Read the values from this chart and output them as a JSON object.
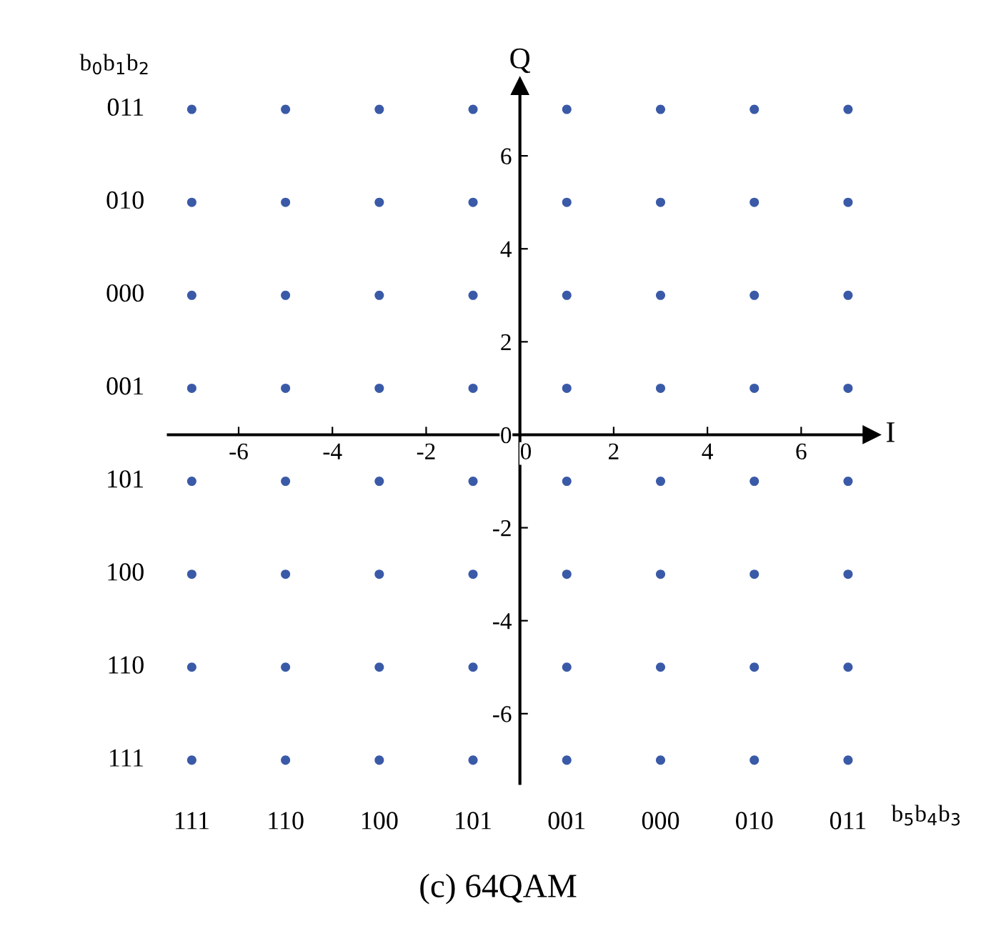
{
  "chart_data": {
    "type": "scatter",
    "title": "(c) 64QAM",
    "xlabel": "I",
    "ylabel": "Q",
    "xlim": [
      -7.5,
      7.5
    ],
    "ylim": [
      -7.5,
      7.5
    ],
    "xticks": [
      -6,
      -4,
      -2,
      0,
      2,
      4,
      6
    ],
    "yticks": [
      -6,
      -4,
      -2,
      0,
      2,
      4,
      6
    ],
    "annotations": [
      "b$_{0}$b$_{1}$b$_{2}$",
      "b$_{5}$b$_{4}$b$_{3}$",
      "111",
      "110",
      "100",
      "101",
      "001",
      "000",
      "010",
      "011",
      "011",
      "010",
      "000",
      "001",
      "101",
      "100",
      "110",
      "111"
    ],
    "marker": "circle",
    "grid": false,
    "legend": false,
    "series": [
      {
        "color": "#3a5aa8",
        "x": [
          -7,
          -5,
          -3,
          -1,
          1,
          3,
          5,
          7,
          -7,
          -5,
          -3,
          -1,
          1,
          3,
          5,
          7,
          -7,
          -5,
          -3,
          -1,
          1,
          3,
          5,
          7,
          -7,
          -5,
          -3,
          -1,
          1,
          3,
          5,
          7,
          -7,
          -5,
          -3,
          -1,
          1,
          3,
          5,
          7,
          -7,
          -5,
          -3,
          -1,
          1,
          3,
          5,
          7,
          -7,
          -5,
          -3,
          -1,
          1,
          3,
          5,
          7,
          -7,
          -5,
          -3,
          -1,
          1,
          3,
          5,
          7
        ],
        "values": [
          7,
          7,
          7,
          7,
          7,
          7,
          7,
          7,
          5,
          5,
          5,
          5,
          5,
          5,
          5,
          5,
          3,
          3,
          3,
          3,
          3,
          3,
          3,
          3,
          1,
          1,
          1,
          1,
          1,
          1,
          1,
          1,
          -1,
          -1,
          -1,
          -1,
          -1,
          -1,
          -1,
          -1,
          -3,
          -3,
          -3,
          -3,
          -3,
          -3,
          -3,
          -3,
          -5,
          -5,
          -5,
          -5,
          -5,
          -5,
          -5,
          -5,
          -7,
          -7,
          -7,
          -7,
          -7,
          -7,
          -7,
          -7
        ]
      }
    ]
  }
}
